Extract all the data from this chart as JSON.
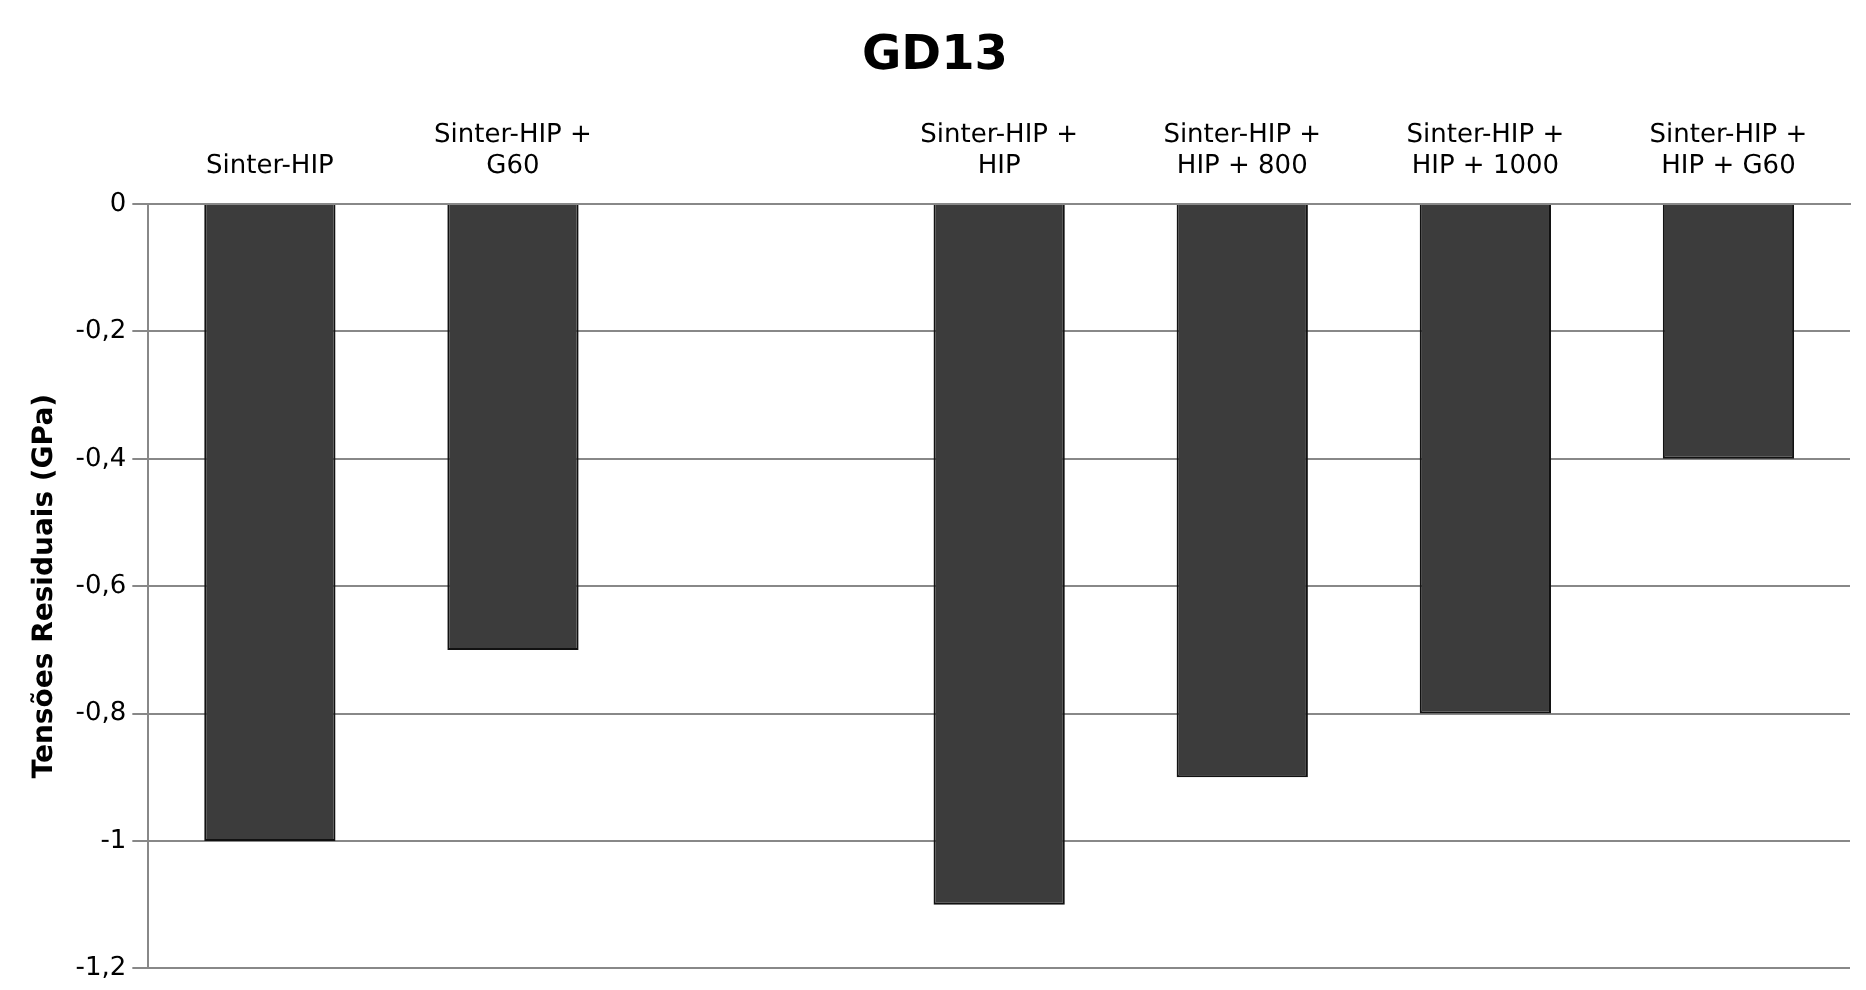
{
  "chart_data": {
    "type": "bar",
    "title": "GD13",
    "ylabel": "Tensões Residuais (GPa)",
    "categories": [
      "Sinter-HIP",
      "Sinter-HIP + G60",
      null,
      "Sinter-HIP + HIP",
      "Sinter-HIP + HIP + 800",
      "Sinter-HIP + HIP + 1000",
      "Sinter-HIP + HIP + G60"
    ],
    "values": [
      -1,
      -0.7,
      null,
      -1.1,
      -0.9,
      -0.8,
      -0.4
    ],
    "color": "#3c3c3c",
    "ylim": [
      -1.2,
      0
    ],
    "yticks": [
      {
        "value": -1.2,
        "label": "-1,2"
      },
      {
        "value": -1,
        "label": "-1"
      },
      {
        "value": -0.8,
        "label": "-0,8"
      },
      {
        "value": -0.6,
        "label": "-0,6"
      },
      {
        "value": -0.4,
        "label": "-0,4"
      },
      {
        "value": -0.2,
        "label": "-0,2"
      },
      {
        "value": 0,
        "label": "0"
      }
    ],
    "grid": "y",
    "legend": false
  }
}
